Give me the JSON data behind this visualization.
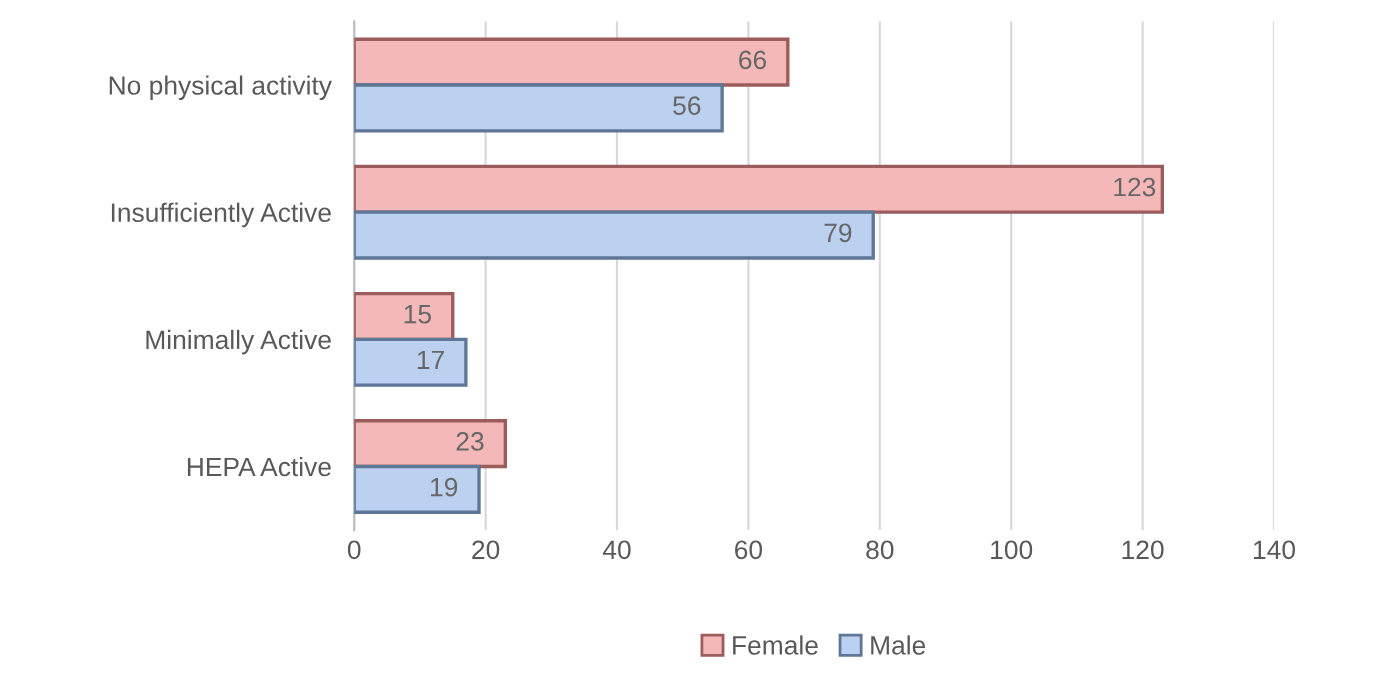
{
  "chart_data": {
    "type": "bar",
    "orientation": "horizontal",
    "categories": [
      "No physical activity",
      "Insufficiently Active",
      "Minimally Active",
      "HEPA Active"
    ],
    "series": [
      {
        "name": "Female",
        "color": "#f5b8b8",
        "values": [
          66,
          123,
          15,
          23
        ]
      },
      {
        "name": "Male",
        "color": "#bcd0f0",
        "values": [
          56,
          79,
          17,
          19
        ]
      }
    ],
    "xlim": [
      0,
      140
    ],
    "xticks": [
      0,
      20,
      40,
      60,
      80,
      100,
      120,
      140
    ],
    "grid": "x",
    "legend": "bottom",
    "data_labels": true
  }
}
